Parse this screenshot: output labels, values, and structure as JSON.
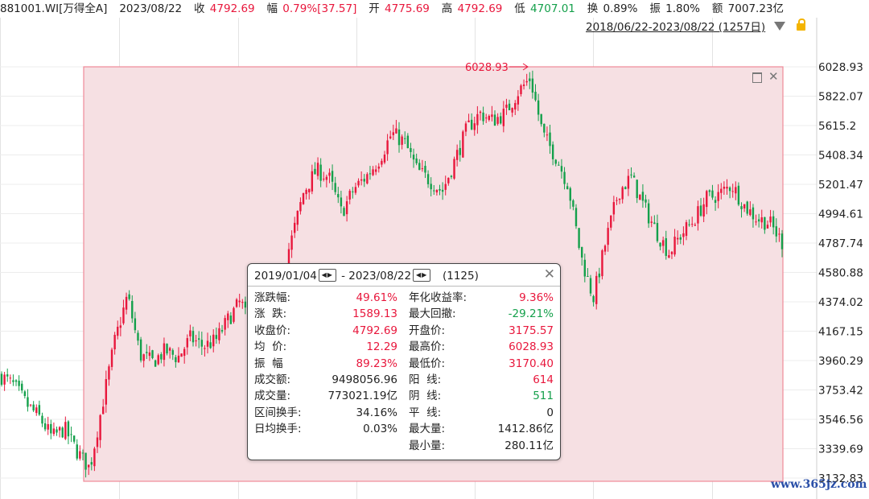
{
  "header": {
    "code": "881001.WI[万得全A]",
    "date": "2023/08/22",
    "close_label": "收",
    "close_value": "4792.69",
    "change_label": "幅",
    "change_value": "0.79%[37.57]",
    "open_label": "开",
    "open_value": "4775.69",
    "high_label": "高",
    "high_value": "4792.69",
    "low_label": "低",
    "low_value": "4707.01",
    "turnover_label": "换",
    "turnover_value": "0.89%",
    "amplitude_label": "振",
    "amplitude_value": "1.80%",
    "amount_label": "额",
    "amount_value": "7007.23亿"
  },
  "range_selector": "2018/06/22-2023/08/22 (1257日)",
  "icons": {
    "dropdown": "triangle-down-icon",
    "lock": "lock-icon",
    "maximize": "maximize-icon",
    "close": "close-icon"
  },
  "colors": {
    "up": "#e8173c",
    "down": "#14a04b",
    "selection_fill": "#f6e0e3",
    "selection_border": "#f08a98"
  },
  "chart_data": {
    "type": "candlestick",
    "y_ticks": [
      "6028.93",
      "5822.07",
      "5615.2",
      "5408.34",
      "5201.47",
      "4994.61",
      "4787.74",
      "4580.88",
      "4374.02",
      "4167.15",
      "3960.29",
      "3753.42",
      "3546.56",
      "3339.69",
      "3132.83"
    ],
    "ylim": [
      3132.83,
      6028.93
    ],
    "x_range": [
      "2018/06/22",
      "2023/08/22"
    ],
    "trading_days": 1257,
    "selected_range": [
      "2019/01/04",
      "2023/08/22"
    ],
    "peak_annotation": "6028.93",
    "path_close": [
      [
        "2018/06",
        3850
      ],
      [
        "2018/07",
        3780
      ],
      [
        "2018/08",
        3650
      ],
      [
        "2018/09",
        3560
      ],
      [
        "2018/10",
        3420
      ],
      [
        "2018/11",
        3480
      ],
      [
        "2018/12",
        3320
      ],
      [
        "2019/01",
        3200
      ],
      [
        "2019/02",
        3650
      ],
      [
        "2019/03",
        4100
      ],
      [
        "2019/04",
        4420
      ],
      [
        "2019/05",
        4000
      ],
      [
        "2019/06",
        3950
      ],
      [
        "2019/07",
        4030
      ],
      [
        "2019/08",
        3980
      ],
      [
        "2019/09",
        4120
      ],
      [
        "2019/10",
        4060
      ],
      [
        "2019/11",
        4100
      ],
      [
        "2019/12",
        4250
      ],
      [
        "2020/01",
        4380
      ],
      [
        "2020/02",
        4100
      ],
      [
        "2020/03",
        4250
      ],
      [
        "2020/04",
        4520
      ],
      [
        "2020/05",
        4800
      ],
      [
        "2020/06",
        5150
      ],
      [
        "2020/07",
        5300
      ],
      [
        "2020/08",
        5250
      ],
      [
        "2020/09",
        5000
      ],
      [
        "2020/10",
        5170
      ],
      [
        "2020/11",
        5260
      ],
      [
        "2020/12",
        5380
      ],
      [
        "2021/01",
        5560
      ],
      [
        "2021/02",
        5500
      ],
      [
        "2021/03",
        5300
      ],
      [
        "2021/04",
        5230
      ],
      [
        "2021/05",
        5150
      ],
      [
        "2021/06",
        5370
      ],
      [
        "2021/07",
        5600
      ],
      [
        "2021/08",
        5700
      ],
      [
        "2021/09",
        5650
      ],
      [
        "2021/10",
        5700
      ],
      [
        "2021/11",
        5850
      ],
      [
        "2021/12",
        5950
      ],
      [
        "2022/01",
        5550
      ],
      [
        "2022/02",
        5400
      ],
      [
        "2022/03",
        5200
      ],
      [
        "2022/04",
        4700
      ],
      [
        "2022/05",
        4400
      ],
      [
        "2022/06",
        4800
      ],
      [
        "2022/07",
        5150
      ],
      [
        "2022/08",
        5250
      ],
      [
        "2022/09",
        5050
      ],
      [
        "2022/10",
        4870
      ],
      [
        "2022/11",
        4720
      ],
      [
        "2022/12",
        4850
      ],
      [
        "2023/01",
        4950
      ],
      [
        "2023/02",
        5100
      ],
      [
        "2023/03",
        5130
      ],
      [
        "2023/04",
        5200
      ],
      [
        "2023/05",
        5050
      ],
      [
        "2023/06",
        4960
      ],
      [
        "2023/07",
        4930
      ],
      [
        "2023/08",
        4792.69
      ]
    ]
  },
  "stats_panel": {
    "start_date": "2019/01/04",
    "dash": "-",
    "end_date": "2023/08/22",
    "days": "(1125)",
    "rows_left": [
      {
        "label": "涨跌幅:",
        "value": "49.61%",
        "color": "red"
      },
      {
        "label": "涨  跌:",
        "value": "1589.13",
        "color": "red"
      },
      {
        "label": "收盘价:",
        "value": "4792.69",
        "color": "red"
      },
      {
        "label": "均  价:",
        "value": "12.29",
        "color": "red"
      },
      {
        "label": "振  幅",
        "value": "89.23%",
        "color": "red"
      },
      {
        "label": "成交额:",
        "value": "9498056.96",
        "color": "black"
      },
      {
        "label": "成交量:",
        "value": "773021.19亿",
        "color": "black"
      },
      {
        "label": "区间换手:",
        "value": "34.16%",
        "color": "black"
      },
      {
        "label": "日均换手:",
        "value": "0.03%",
        "color": "black"
      }
    ],
    "rows_right": [
      {
        "label": "年化收益率:",
        "value": "9.36%",
        "color": "red"
      },
      {
        "label": "最大回撤:",
        "value": "-29.21%",
        "color": "green"
      },
      {
        "label": "开盘价:",
        "value": "3175.57",
        "color": "red"
      },
      {
        "label": "最高价:",
        "value": "6028.93",
        "color": "red"
      },
      {
        "label": "最低价:",
        "value": "3170.40",
        "color": "red"
      },
      {
        "label": "阳  线:",
        "value": "614",
        "color": "red"
      },
      {
        "label": "阴  线:",
        "value": "511",
        "color": "green"
      },
      {
        "label": "平  线:",
        "value": "0",
        "color": "black"
      },
      {
        "label": "最大量:",
        "value": "1412.86亿",
        "color": "black"
      },
      {
        "label": "最小量:",
        "value": "280.11亿",
        "color": "black"
      }
    ]
  },
  "watermark": "www.365jz.com"
}
